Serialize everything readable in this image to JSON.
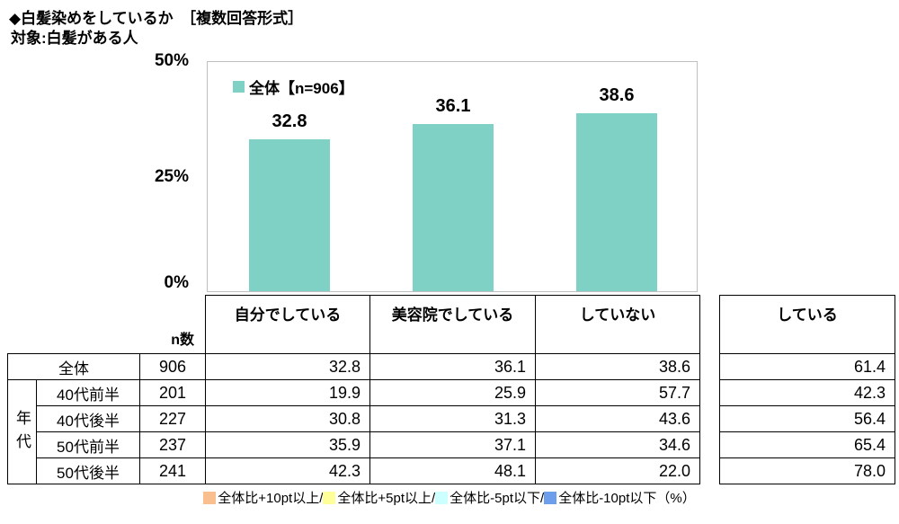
{
  "title": "◆白髪染めをしているか　［複数回答形式］",
  "subtitle": "対象:白髪がある人",
  "colors": {
    "bar": "#7fd1c5",
    "plus10": "#fabf8f",
    "plus5": "#ffff99",
    "minus5": "#ccffff",
    "minus10": "#6d9eeb"
  },
  "chart_data": [
    {
      "type": "bar",
      "legend": "全体【n=906】",
      "categories": [
        "自分でしている",
        "美容院でしている",
        "していない"
      ],
      "values": [
        "32.8",
        "36.1",
        "38.6"
      ],
      "ylabel": "",
      "ylim": [
        0,
        50
      ],
      "yticks": [
        "50%",
        "25%",
        "0%"
      ],
      "grid": false,
      "legend_position": "top-left-inside"
    },
    {
      "type": "table",
      "n_header": "n数",
      "group_label": "年代",
      "columns": [
        "自分でしている",
        "美容院でしている",
        "していない"
      ],
      "extra_column": "している",
      "rows": [
        {
          "label": "全体",
          "n": "906",
          "values": [
            "32.8",
            "36.1",
            "38.6"
          ],
          "hl": [
            "none",
            "none",
            "none"
          ],
          "extra": "61.4",
          "extra_hl": "none"
        },
        {
          "label": "40代前半",
          "n": "201",
          "values": [
            "19.9",
            "25.9",
            "57.7"
          ],
          "hl": [
            "minus10",
            "minus10",
            "plus10"
          ],
          "extra": "42.3",
          "extra_hl": "minus10"
        },
        {
          "label": "40代後半",
          "n": "227",
          "values": [
            "30.8",
            "31.3",
            "43.6"
          ],
          "hl": [
            "none",
            "none",
            "plus5"
          ],
          "extra": "56.4",
          "extra_hl": "minus5"
        },
        {
          "label": "50代前半",
          "n": "237",
          "values": [
            "35.9",
            "37.1",
            "34.6"
          ],
          "hl": [
            "none",
            "none",
            "none"
          ],
          "extra": "65.4",
          "extra_hl": "none"
        },
        {
          "label": "50代後半",
          "n": "241",
          "values": [
            "42.3",
            "48.1",
            "22.0"
          ],
          "hl": [
            "plus5",
            "plus10",
            "minus10"
          ],
          "extra": "78.0",
          "extra_hl": "plus10"
        }
      ]
    }
  ],
  "footer_legend": {
    "items": [
      {
        "key": "plus10",
        "label": "全体比+10pt以上/"
      },
      {
        "key": "plus5",
        "label": "全体比+5pt以上/"
      },
      {
        "key": "minus5",
        "label": "全体比-5pt以下/"
      },
      {
        "key": "minus10",
        "label": "全体比-10pt以下"
      }
    ],
    "suffix": "（%）"
  }
}
